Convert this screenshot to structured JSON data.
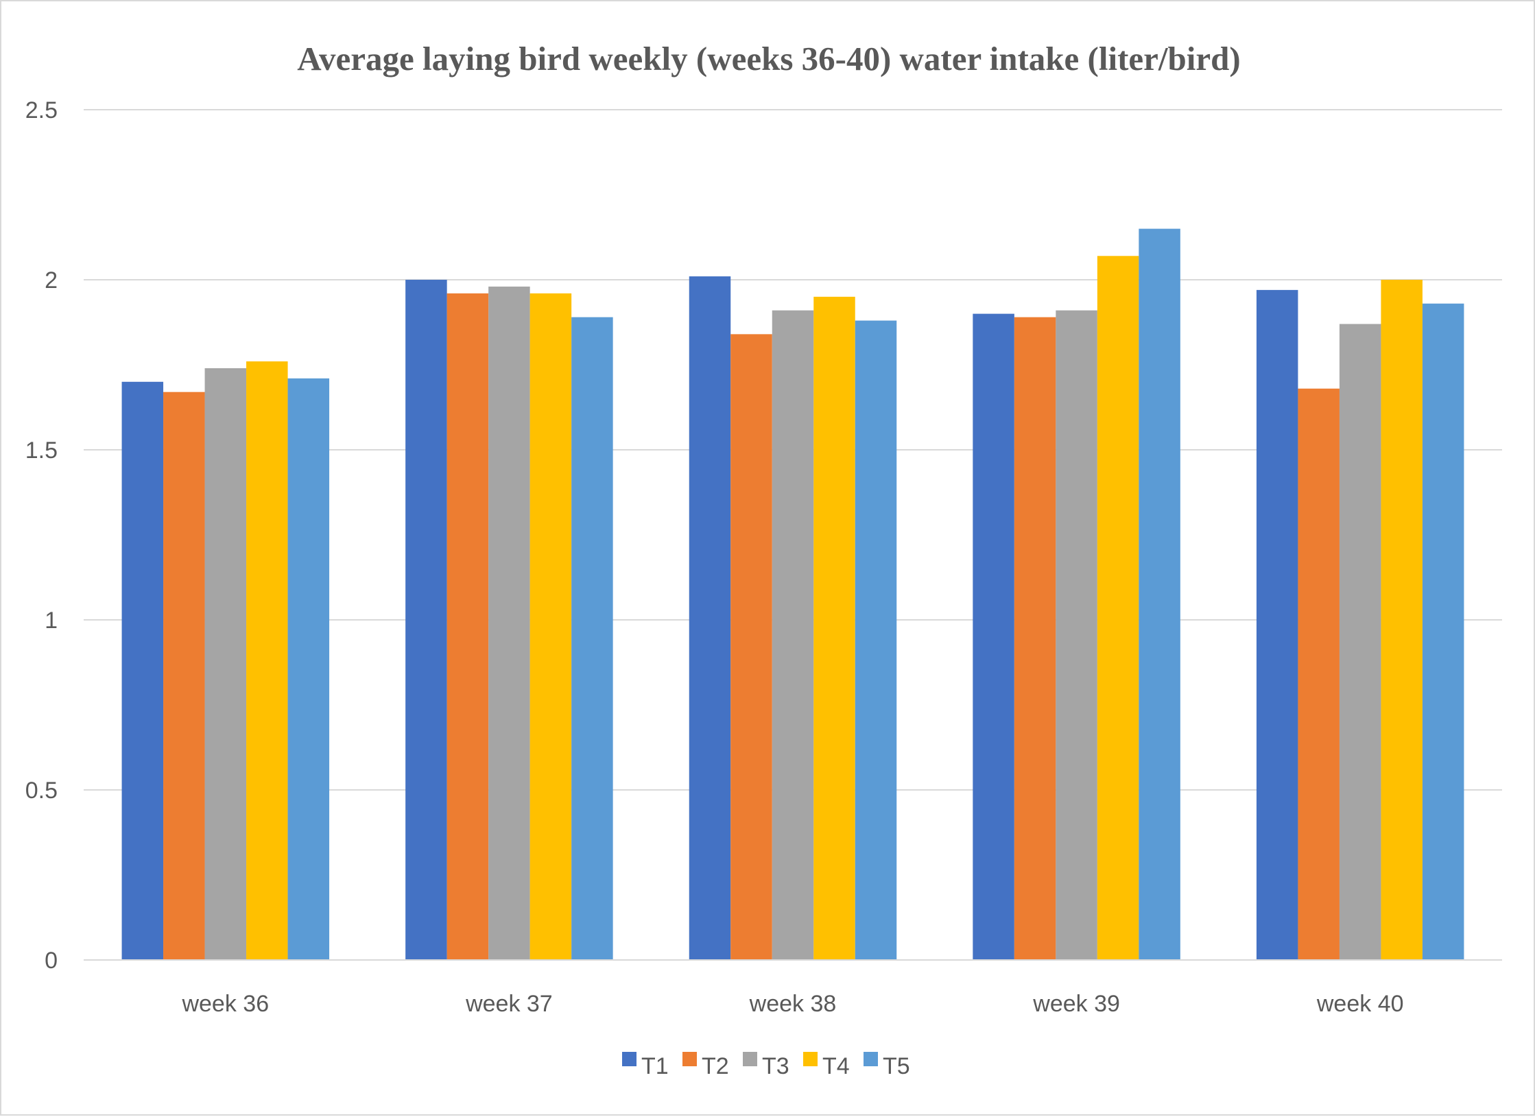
{
  "chart_data": {
    "type": "bar",
    "title": "Average laying bird weekly (weeks 36-40) water intake (liter/bird)",
    "xlabel": "",
    "ylabel": "",
    "categories": [
      "week 36",
      "week 37",
      "week 38",
      "week 39",
      "week 40"
    ],
    "ylim": [
      0,
      2.5
    ],
    "yticks": [
      "0",
      "0.5",
      "1",
      "1.5",
      "2",
      "2.5"
    ],
    "grid": true,
    "legend_position": "bottom",
    "series": [
      {
        "name": "T1",
        "color": "#4472C4",
        "values": [
          1.7,
          2.0,
          2.01,
          1.9,
          1.97
        ]
      },
      {
        "name": "T2",
        "color": "#ED7D31",
        "values": [
          1.67,
          1.96,
          1.84,
          1.89,
          1.68
        ]
      },
      {
        "name": "T3",
        "color": "#A5A5A5",
        "values": [
          1.74,
          1.98,
          1.91,
          1.91,
          1.87
        ]
      },
      {
        "name": "T4",
        "color": "#FFC000",
        "values": [
          1.76,
          1.96,
          1.95,
          2.07,
          2.0
        ]
      },
      {
        "name": "T5",
        "color": "#5B9BD5",
        "values": [
          1.71,
          1.89,
          1.88,
          2.15,
          1.93
        ]
      }
    ]
  }
}
